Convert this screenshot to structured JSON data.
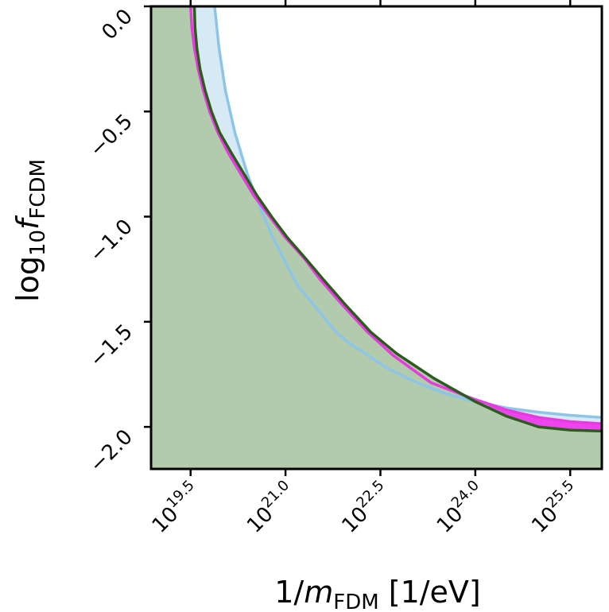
{
  "chart_data": {
    "type": "area",
    "xlabel": {
      "main": "1/",
      "var": "m",
      "sub": "FDM",
      "unit": " [1/eV]"
    },
    "ylabel": {
      "main": "log",
      "base": "10",
      "var": "f",
      "sub": "FCDM"
    },
    "xlim": [
      18.875,
      26.0
    ],
    "ylim": [
      -2.2,
      0.0
    ],
    "x_scale": "log10",
    "x_ticks": [
      {
        "base": "10",
        "exp": "19.5",
        "value": 19.5
      },
      {
        "base": "10",
        "exp": "21.0",
        "value": 21.0
      },
      {
        "base": "10",
        "exp": "22.5",
        "value": 22.5
      },
      {
        "base": "10",
        "exp": "24.0",
        "value": 24.0
      },
      {
        "base": "10",
        "exp": "25.5",
        "value": 25.5
      }
    ],
    "y_ticks": [
      {
        "label": "0.0",
        "value": 0.0
      },
      {
        "label": "−0.5",
        "value": -0.5
      },
      {
        "label": "−1.0",
        "value": -1.0
      },
      {
        "label": "−1.5",
        "value": -1.5
      },
      {
        "label": "−2.0",
        "value": -2.0
      }
    ],
    "grid": false,
    "series": [
      {
        "fill": "#d6eaf6",
        "stroke": "#8ec5e6",
        "points": [
          [
            19.88,
            0.0
          ],
          [
            19.95,
            -0.2
          ],
          [
            20.05,
            -0.4
          ],
          [
            20.2,
            -0.6
          ],
          [
            20.4,
            -0.8
          ],
          [
            20.6,
            -0.96
          ],
          [
            20.8,
            -1.1
          ],
          [
            21.0,
            -1.22
          ],
          [
            21.2,
            -1.33
          ],
          [
            21.5,
            -1.44
          ],
          [
            21.8,
            -1.55
          ],
          [
            22.0,
            -1.6
          ],
          [
            22.3,
            -1.66
          ],
          [
            22.6,
            -1.72
          ],
          [
            23.0,
            -1.78
          ],
          [
            23.5,
            -1.84
          ],
          [
            24.0,
            -1.88
          ],
          [
            24.5,
            -1.91
          ],
          [
            25.0,
            -1.93
          ],
          [
            25.5,
            -1.945
          ],
          [
            26.0,
            -1.955
          ]
        ]
      },
      {
        "fill": "#ee44ee",
        "stroke": "#e73be0",
        "points": [
          [
            19.5,
            0.0
          ],
          [
            19.52,
            -0.1
          ],
          [
            19.56,
            -0.2
          ],
          [
            19.62,
            -0.3
          ],
          [
            19.7,
            -0.4
          ],
          [
            19.8,
            -0.5
          ],
          [
            19.93,
            -0.6
          ],
          [
            20.1,
            -0.7
          ],
          [
            20.3,
            -0.8
          ],
          [
            20.5,
            -0.9
          ],
          [
            20.75,
            -1.0
          ],
          [
            21.0,
            -1.1
          ],
          [
            21.3,
            -1.2
          ],
          [
            21.55,
            -1.3
          ],
          [
            21.9,
            -1.42
          ],
          [
            22.3,
            -1.55
          ],
          [
            22.7,
            -1.66
          ],
          [
            23.3,
            -1.79
          ],
          [
            24.0,
            -1.87
          ],
          [
            24.5,
            -1.92
          ],
          [
            25.0,
            -1.955
          ],
          [
            25.5,
            -1.975
          ],
          [
            26.0,
            -1.985
          ]
        ]
      },
      {
        "fill": "#b2cbac",
        "stroke": "#2b5c1d",
        "points": [
          [
            19.56,
            0.0
          ],
          [
            19.57,
            -0.1
          ],
          [
            19.6,
            -0.2
          ],
          [
            19.65,
            -0.3
          ],
          [
            19.73,
            -0.4
          ],
          [
            19.83,
            -0.5
          ],
          [
            19.96,
            -0.6
          ],
          [
            20.15,
            -0.7
          ],
          [
            20.35,
            -0.8
          ],
          [
            20.55,
            -0.9
          ],
          [
            20.78,
            -1.0
          ],
          [
            21.03,
            -1.1
          ],
          [
            21.32,
            -1.2
          ],
          [
            21.6,
            -1.3
          ],
          [
            21.95,
            -1.42
          ],
          [
            22.35,
            -1.55
          ],
          [
            22.75,
            -1.65
          ],
          [
            23.35,
            -1.77
          ],
          [
            24.0,
            -1.88
          ],
          [
            24.5,
            -1.95
          ],
          [
            25.0,
            -2.0
          ],
          [
            25.5,
            -2.015
          ],
          [
            26.0,
            -2.02
          ]
        ]
      }
    ]
  }
}
